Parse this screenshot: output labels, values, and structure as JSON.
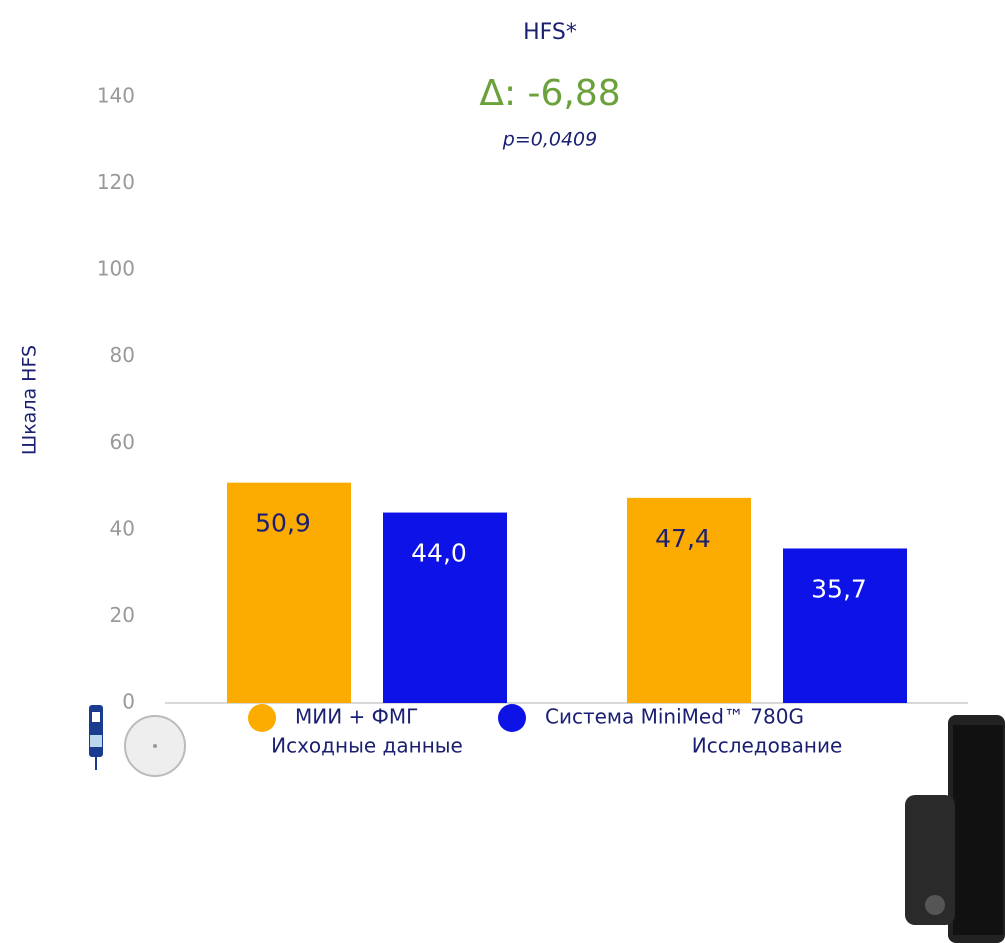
{
  "chart_data": {
    "type": "bar",
    "title": "HFS*",
    "annotation": "Δ: -6,88",
    "annotation_note": "p=0,0409",
    "y_label": "Шкала HFS",
    "categories": [
      "Исходные данные",
      "Исследование"
    ],
    "series": [
      {
        "name": "МИИ + ФМГ",
        "color": "#fcab00",
        "values": [
          50.9,
          47.4
        ],
        "value_labels": [
          "50,9",
          "47,4"
        ]
      },
      {
        "name": "Система MiniMed™ 780G",
        "color": "#0d12e6",
        "values": [
          44.0,
          35.7
        ],
        "value_labels": [
          "44,0",
          "35,7"
        ]
      }
    ],
    "ylim": [
      0,
      140
    ],
    "yticks": [
      0,
      20,
      40,
      60,
      80,
      100,
      120,
      140
    ],
    "grid": false
  }
}
